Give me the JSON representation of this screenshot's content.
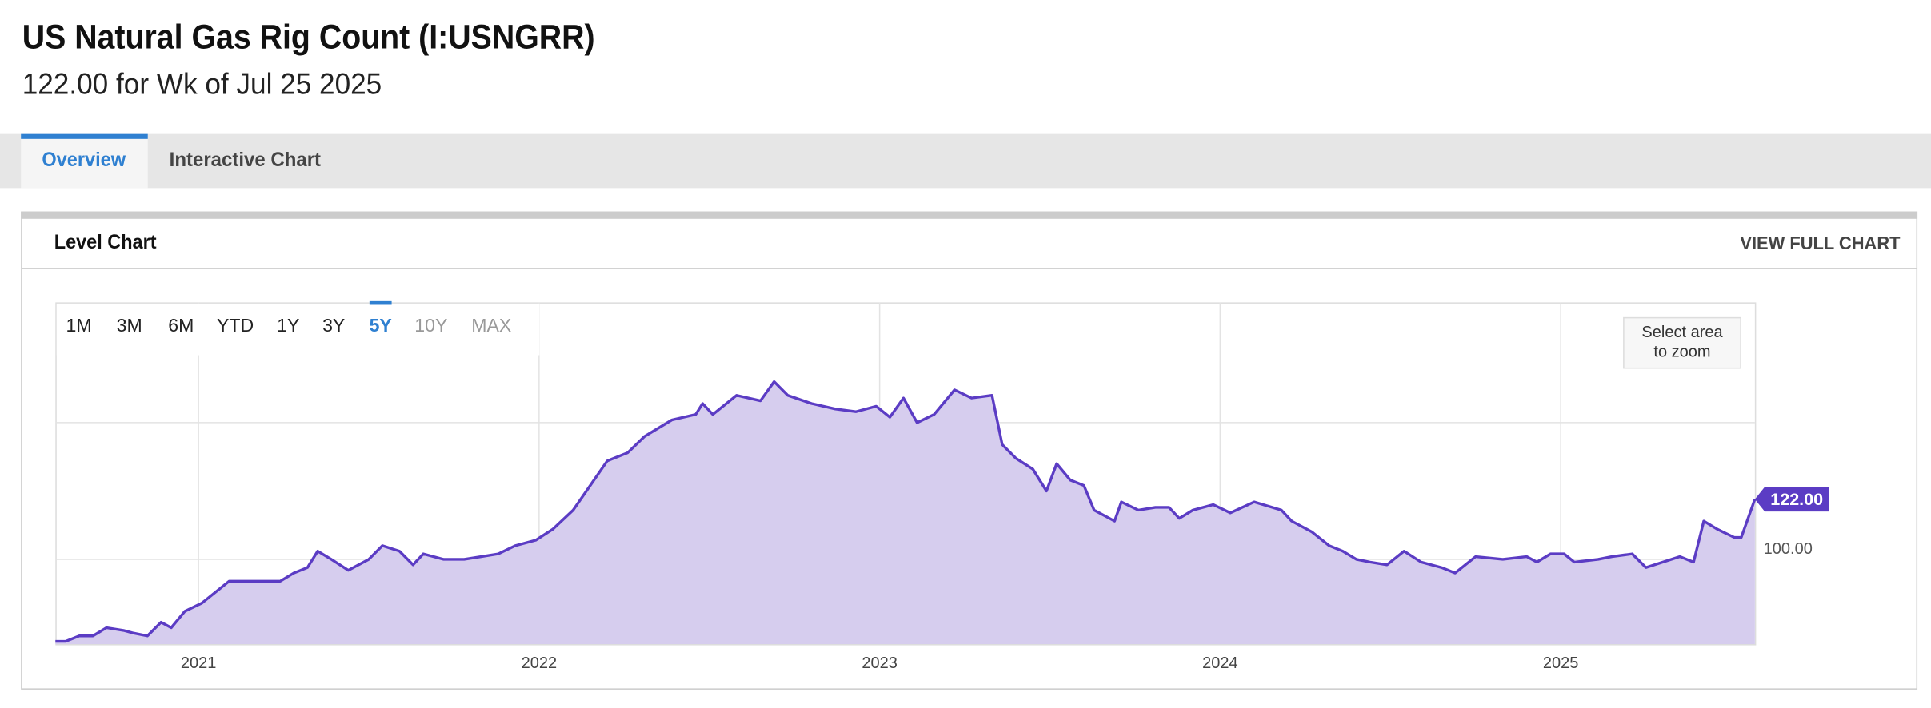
{
  "header": {
    "title": "US Natural Gas Rig Count (I:USNGRR)",
    "subtitle": "122.00 for Wk of Jul 25 2025"
  },
  "tabs": [
    "Overview",
    "Interactive Chart"
  ],
  "panel": {
    "title": "Level Chart",
    "link": "VIEW FULL CHART"
  },
  "ranges": [
    "1M",
    "3M",
    "6M",
    "YTD",
    "1Y",
    "3Y",
    "5Y",
    "10Y",
    "MAX"
  ],
  "zoom_hint": [
    "Select area",
    "to zoom"
  ],
  "chart_data": {
    "type": "area",
    "color": "#5b3cc4",
    "fill": "#d6cdee",
    "x": [
      2020.58,
      2020.61,
      2020.65,
      2020.69,
      2020.73,
      2020.78,
      2020.81,
      2020.85,
      2020.89,
      2020.92,
      2020.96,
      2021.01,
      2021.06,
      2021.09,
      2021.14,
      2021.24,
      2021.28,
      2021.32,
      2021.35,
      2021.39,
      2021.44,
      2021.5,
      2021.54,
      2021.59,
      2021.63,
      2021.66,
      2021.72,
      2021.78,
      2021.83,
      2021.88,
      2021.93,
      2021.99,
      2022.04,
      2022.1,
      2022.15,
      2022.2,
      2022.26,
      2022.31,
      2022.39,
      2022.46,
      2022.48,
      2022.51,
      2022.58,
      2022.65,
      2022.69,
      2022.73,
      2022.8,
      2022.87,
      2022.93,
      2022.99,
      2023.03,
      2023.07,
      2023.11,
      2023.16,
      2023.22,
      2023.27,
      2023.33,
      2023.36,
      2023.4,
      2023.45,
      2023.49,
      2023.52,
      2023.56,
      2023.6,
      2023.63,
      2023.69,
      2023.71,
      2023.76,
      2023.81,
      2023.85,
      2023.88,
      2023.92,
      2023.98,
      2024.03,
      2024.1,
      2024.18,
      2024.21,
      2024.27,
      2024.32,
      2024.36,
      2024.4,
      2024.44,
      2024.49,
      2024.54,
      2024.59,
      2024.65,
      2024.69,
      2024.75,
      2024.83,
      2024.9,
      2024.93,
      2024.97,
      2025.01,
      2025.04,
      2025.11,
      2025.15,
      2025.21,
      2025.25,
      2025.3,
      2025.35,
      2025.39,
      2025.42,
      2025.46,
      2025.51,
      2025.53,
      2025.57
    ],
    "values": [
      70,
      70,
      72,
      72,
      75,
      74,
      73,
      72,
      77,
      75,
      81,
      84,
      89,
      92,
      92,
      92,
      95,
      97,
      103,
      100,
      96,
      100,
      105,
      103,
      98,
      102,
      100,
      100,
      101,
      102,
      105,
      107,
      111,
      118,
      127,
      136,
      139,
      145,
      151,
      153,
      157,
      153,
      160,
      158,
      165,
      160,
      157,
      155,
      154,
      156,
      152,
      159,
      150,
      153,
      162,
      159,
      160,
      142,
      137,
      133,
      125,
      135,
      129,
      127,
      118,
      114,
      121,
      118,
      119,
      119,
      115,
      118,
      120,
      117,
      121,
      118,
      114,
      110,
      105,
      103,
      100,
      99,
      98,
      103,
      99,
      97,
      95,
      101,
      100,
      101,
      99,
      102,
      102,
      99,
      100,
      101,
      102,
      97,
      99,
      101,
      99,
      114,
      111,
      108,
      108,
      122
    ],
    "value_labels": [
      null,
      null,
      null,
      null,
      null,
      null,
      null,
      null,
      null,
      null,
      null,
      null,
      null,
      null,
      null,
      null,
      null,
      null,
      null,
      null,
      null,
      null,
      null,
      null,
      null,
      null,
      null,
      null,
      null,
      null,
      null,
      null,
      null,
      null,
      null,
      null,
      null,
      null,
      null,
      null,
      null,
      null,
      null,
      null,
      null,
      null,
      null,
      null,
      null,
      null,
      null,
      null,
      null,
      null,
      null,
      null,
      null,
      null,
      null,
      null,
      null,
      null,
      null,
      null,
      null,
      null,
      null,
      null,
      null,
      null,
      null,
      null,
      null,
      null,
      null,
      null,
      null,
      null,
      null,
      null,
      null,
      null,
      null,
      null,
      null,
      null,
      null,
      null,
      null,
      null,
      null,
      null,
      null,
      null,
      null,
      null,
      null,
      null,
      null,
      null,
      null,
      null,
      null,
      null,
      null,
      "122.00"
    ],
    "xlim": [
      2020.58,
      2025.57
    ],
    "xticks": [
      2021,
      2022,
      2023,
      2024,
      2025
    ],
    "ylim": [
      69,
      194
    ],
    "yticks": [
      {
        "value": 100,
        "label": "100.00"
      }
    ],
    "y_grid": [
      100,
      150
    ],
    "grid": true
  }
}
